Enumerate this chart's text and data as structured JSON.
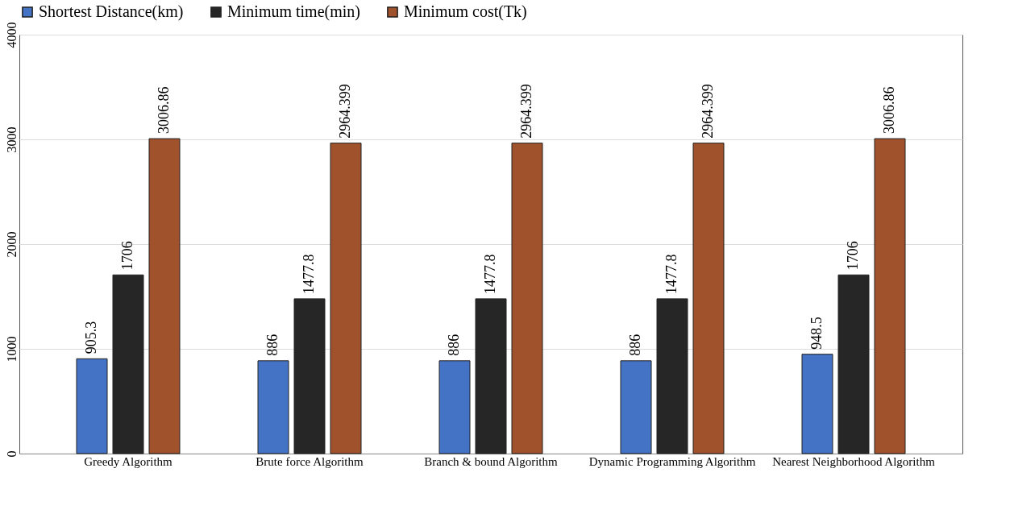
{
  "chart_data": {
    "type": "bar",
    "categories": [
      "Greedy Algorithm",
      "Brute force Algorithm",
      "Branch & bound Algorithm",
      "Dynamic Programming Algorithm",
      "Nearest Neighborhood Algorithm"
    ],
    "series": [
      {
        "name": "Shortest Distance(km)",
        "color": "#4472c4",
        "values": [
          905.3,
          886,
          886,
          886,
          948.5
        ]
      },
      {
        "name": "Minimum time(min)",
        "color": "#262626",
        "values": [
          1706,
          1477.8,
          1477.8,
          1477.8,
          1706
        ]
      },
      {
        "name": "Minimum cost(Tk)",
        "color": "#a0522d",
        "values": [
          3006.86,
          2964.399,
          2964.399,
          2964.399,
          3006.86
        ]
      }
    ],
    "ylim": [
      0,
      4000
    ],
    "yticks": [
      0,
      1000,
      2000,
      3000,
      4000
    ],
    "grid": "y",
    "legend": "top",
    "data_labels": true
  }
}
